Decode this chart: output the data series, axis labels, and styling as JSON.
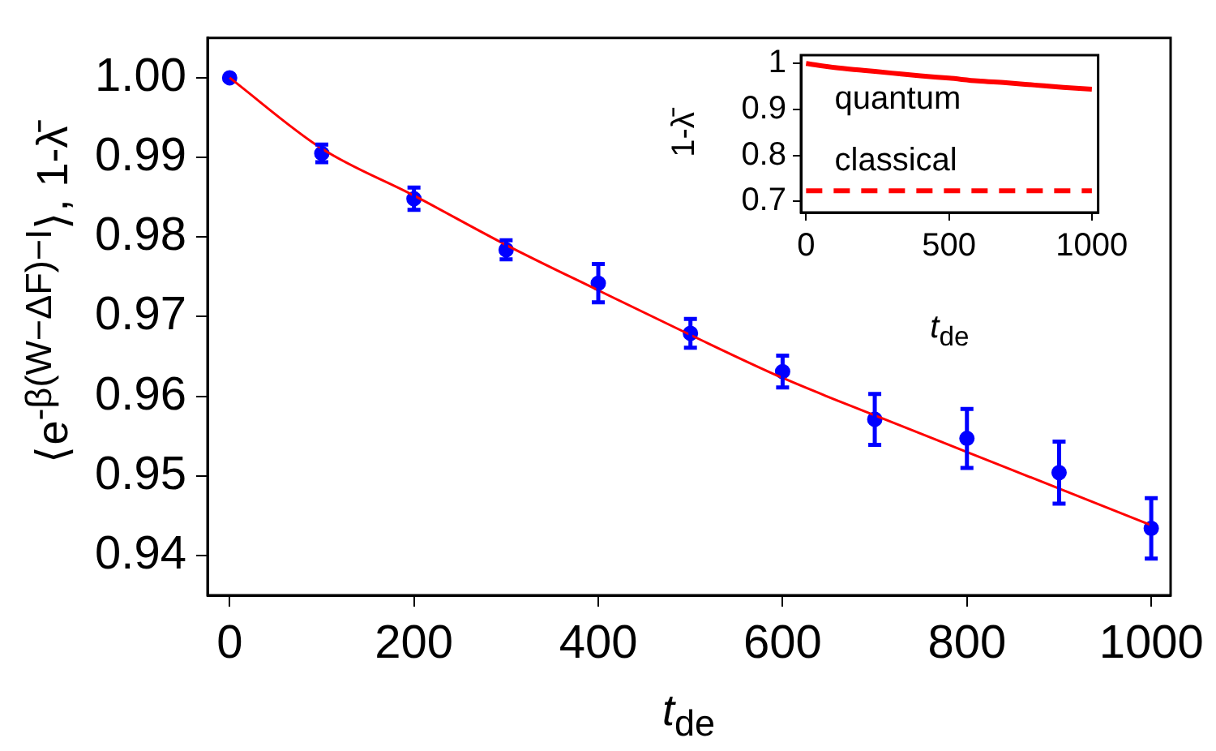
{
  "chart_data": [
    {
      "type": "scatter",
      "xlabel": "t$_{de}$",
      "ylabel": "⟨e$^{-β(W−ΔF)−I}$⟩,  1-λ̄",
      "xlim": [
        -24,
        1021
      ],
      "ylim": [
        0.935,
        1.005
      ],
      "xticks": [
        0,
        200,
        400,
        600,
        800,
        1000
      ],
      "yticks": [
        0.94,
        0.95,
        0.96,
        0.97,
        0.98,
        0.99,
        {
          "value": 1,
          "label": "1.00"
        }
      ],
      "series": [
        {
          "type": "line",
          "color": "#ff0000",
          "marker": "none",
          "x": [
            0,
            100,
            200,
            300,
            400,
            500,
            600,
            700,
            800,
            900,
            1000
          ],
          "values": [
            1.0,
            0.9911,
            0.9852,
            0.979,
            0.9733,
            0.9677,
            0.9623,
            0.9576,
            0.953,
            0.9484,
            0.9438
          ]
        },
        {
          "color": "#0000ff",
          "marker": "circle",
          "x": [
            0,
            100,
            200,
            300,
            400,
            500,
            600,
            700,
            800,
            900,
            1000
          ],
          "values": [
            1.0,
            0.9905,
            0.9848,
            0.9784,
            0.9742,
            0.9679,
            0.9631,
            0.9571,
            0.9547,
            0.9504,
            0.9434
          ],
          "errors": [
            null,
            0.0011,
            0.0014,
            0.0012,
            0.0024,
            0.0018,
            0.002,
            0.0032,
            0.0037,
            0.0039,
            0.0038
          ]
        }
      ]
    },
    {
      "type": "line",
      "xlabel": "t$_{de}$",
      "ylabel": "1-λ̄",
      "xlim": [
        -18,
        1022
      ],
      "ylim": [
        0.676,
        1.018
      ],
      "xticks": [
        0,
        500,
        1000
      ],
      "yticks": [
        0.7,
        0.8,
        0.9,
        1
      ],
      "marker": "none",
      "x": [
        0,
        100,
        200,
        300,
        400,
        500,
        600,
        700,
        800,
        900,
        1000
      ],
      "series": [
        {
          "name": "quantum",
          "color": "#ff0000",
          "line_style": "solid",
          "values": [
            1.0,
            0.991,
            0.985,
            0.979,
            0.973,
            0.968,
            0.962,
            0.958,
            0.953,
            0.948,
            0.944
          ]
        },
        {
          "name": "classical",
          "color": "#ff0000",
          "line_style": "dashed",
          "values": [
            0.723,
            0.723,
            0.723,
            0.723,
            0.723,
            0.723,
            0.723,
            0.723,
            0.723,
            0.723,
            0.723
          ]
        }
      ]
    }
  ]
}
